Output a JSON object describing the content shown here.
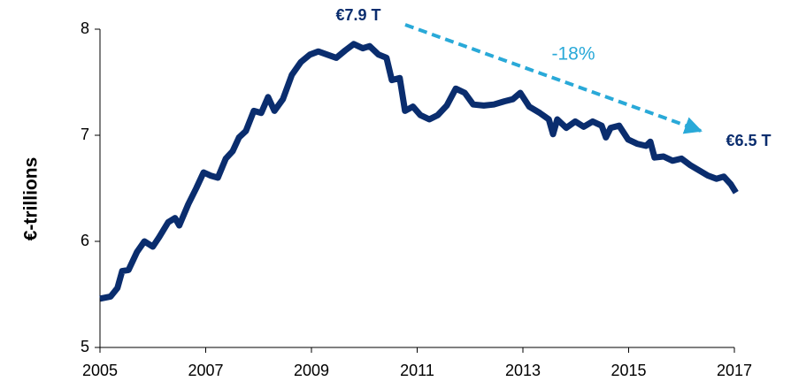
{
  "chart_data": {
    "type": "line",
    "ylabel": "€-trillions",
    "annotations": [
      {
        "text": "€7.9 T"
      },
      {
        "text": "€6.5 T"
      },
      {
        "text": "-18%"
      }
    ],
    "xlim": [
      2005,
      2017
    ],
    "xticks": [
      2005,
      2007,
      2009,
      2011,
      2013,
      2015,
      2017
    ],
    "ylim": [
      5,
      8
    ],
    "yticks": [
      5,
      6,
      7,
      8
    ],
    "grid": false,
    "series": [
      {
        "color": "#0a2d6e",
        "x": [
          2005.0,
          2005.2,
          2005.33,
          2005.42,
          2005.54,
          2005.7,
          2005.84,
          2006.0,
          2006.12,
          2006.29,
          2006.42,
          2006.5,
          2006.67,
          2006.82,
          2006.96,
          2007.09,
          2007.23,
          2007.38,
          2007.51,
          2007.63,
          2007.76,
          2007.91,
          2008.05,
          2008.18,
          2008.3,
          2008.46,
          2008.63,
          2008.8,
          2008.97,
          2009.13,
          2009.3,
          2009.47,
          2009.64,
          2009.8,
          2009.97,
          2010.1,
          2010.27,
          2010.42,
          2010.52,
          2010.67,
          2010.77,
          2010.92,
          2011.06,
          2011.23,
          2011.39,
          2011.56,
          2011.73,
          2011.9,
          2012.06,
          2012.26,
          2012.45,
          2012.65,
          2012.81,
          2012.95,
          2013.12,
          2013.32,
          2013.49,
          2013.57,
          2013.65,
          2013.82,
          2013.99,
          2014.15,
          2014.32,
          2014.49,
          2014.57,
          2014.66,
          2014.82,
          2014.99,
          2015.16,
          2015.33,
          2015.41,
          2015.49,
          2015.66,
          2015.83,
          2016.0,
          2016.16,
          2016.33,
          2016.5,
          2016.66,
          2016.8,
          2016.93,
          2017.03
        ],
        "values": [
          5.46,
          5.48,
          5.56,
          5.72,
          5.73,
          5.9,
          6.0,
          5.95,
          6.04,
          6.18,
          6.22,
          6.15,
          6.35,
          6.5,
          6.65,
          6.62,
          6.6,
          6.78,
          6.85,
          6.98,
          7.04,
          7.23,
          7.21,
          7.36,
          7.23,
          7.34,
          7.57,
          7.69,
          7.76,
          7.79,
          7.76,
          7.73,
          7.8,
          7.86,
          7.82,
          7.84,
          7.76,
          7.73,
          7.52,
          7.54,
          7.23,
          7.27,
          7.19,
          7.15,
          7.19,
          7.28,
          7.44,
          7.4,
          7.29,
          7.28,
          7.29,
          7.32,
          7.34,
          7.4,
          7.27,
          7.21,
          7.15,
          7.01,
          7.15,
          7.07,
          7.13,
          7.08,
          7.13,
          7.09,
          6.98,
          7.07,
          7.09,
          6.96,
          6.92,
          6.9,
          6.94,
          6.79,
          6.8,
          6.76,
          6.78,
          6.72,
          6.67,
          6.62,
          6.59,
          6.61,
          6.54,
          6.46
        ]
      }
    ]
  }
}
